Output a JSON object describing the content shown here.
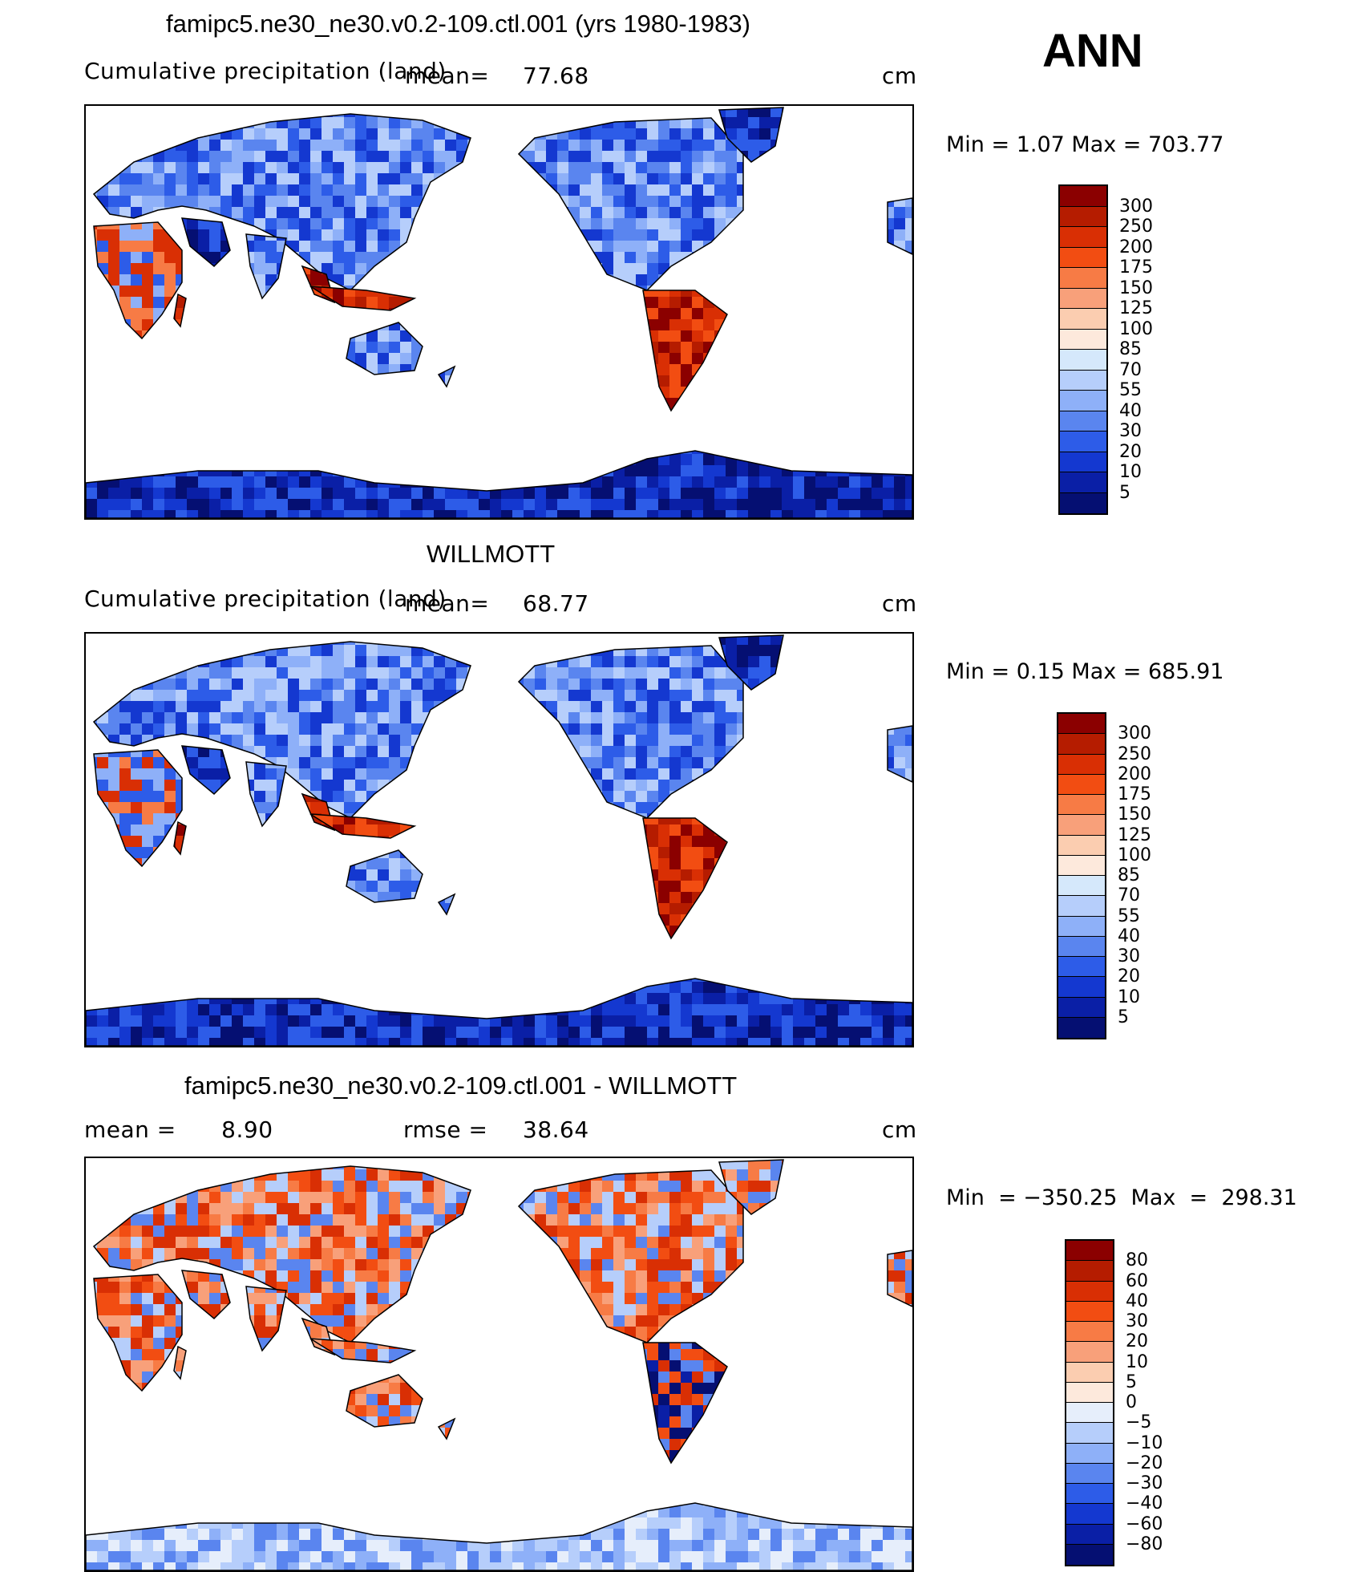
{
  "ann_label": "ANN",
  "panels": [
    {
      "title": "famipc5.ne30_ne30.v0.2-109.ctl.001 (yrs 1980-1983)",
      "left_label": "Cumulative precipitation (land)",
      "mid_label": "mean=",
      "mid_value": "77.68",
      "units": "cm",
      "min_max": "Min =    1.07  Max  =  703.77",
      "colorbar": {
        "levels": [
          "300",
          "250",
          "200",
          "175",
          "150",
          "125",
          "100",
          "85",
          "70",
          "55",
          "40",
          "30",
          "20",
          "10",
          "5"
        ],
        "colors": [
          "#8b0000",
          "#b51c00",
          "#d92f04",
          "#f24d12",
          "#f77b45",
          "#f8a07a",
          "#fbcdb0",
          "#fde9dc",
          "#d5e8fb",
          "#b6cefb",
          "#8eb0f8",
          "#5a85ef",
          "#2d5ce8",
          "#1438d0",
          "#0a1fa6",
          "#050f72"
        ]
      },
      "map_palette": "precip"
    },
    {
      "title": "WILLMOTT",
      "left_label": "Cumulative precipitation (land)",
      "mid_label": "mean=",
      "mid_value": "68.77",
      "units": "cm",
      "min_max": "Min =    0.15  Max  =  685.91",
      "colorbar": {
        "levels": [
          "300",
          "250",
          "200",
          "175",
          "150",
          "125",
          "100",
          "85",
          "70",
          "55",
          "40",
          "30",
          "20",
          "10",
          "5"
        ],
        "colors": [
          "#8b0000",
          "#b51c00",
          "#d92f04",
          "#f24d12",
          "#f77b45",
          "#f8a07a",
          "#fbcdb0",
          "#fde9dc",
          "#d5e8fb",
          "#b6cefb",
          "#8eb0f8",
          "#5a85ef",
          "#2d5ce8",
          "#1438d0",
          "#0a1fa6",
          "#050f72"
        ]
      },
      "map_palette": "precip"
    },
    {
      "title": "famipc5.ne30_ne30.v0.2-109.ctl.001 - WILLMOTT",
      "left_label": "mean =      8.90",
      "mid_label": "rmse =",
      "mid_value": "38.64",
      "units": "cm",
      "min_max": "Min  = −350.25  Max  =  298.31",
      "colorbar": {
        "levels": [
          "80",
          "60",
          "40",
          "30",
          "20",
          "10",
          "5",
          "0",
          "−5",
          "−10",
          "−20",
          "−30",
          "−40",
          "−60",
          "−80"
        ],
        "colors": [
          "#8b0000",
          "#b51c00",
          "#d92f04",
          "#f24d12",
          "#f77b45",
          "#f8a07a",
          "#fbcdb0",
          "#fde9dc",
          "#e6eefb",
          "#b6cefb",
          "#8eb0f8",
          "#5a85ef",
          "#2d5ce8",
          "#1438d0",
          "#0a1fa6",
          "#050f72"
        ]
      },
      "map_palette": "diff"
    }
  ]
}
